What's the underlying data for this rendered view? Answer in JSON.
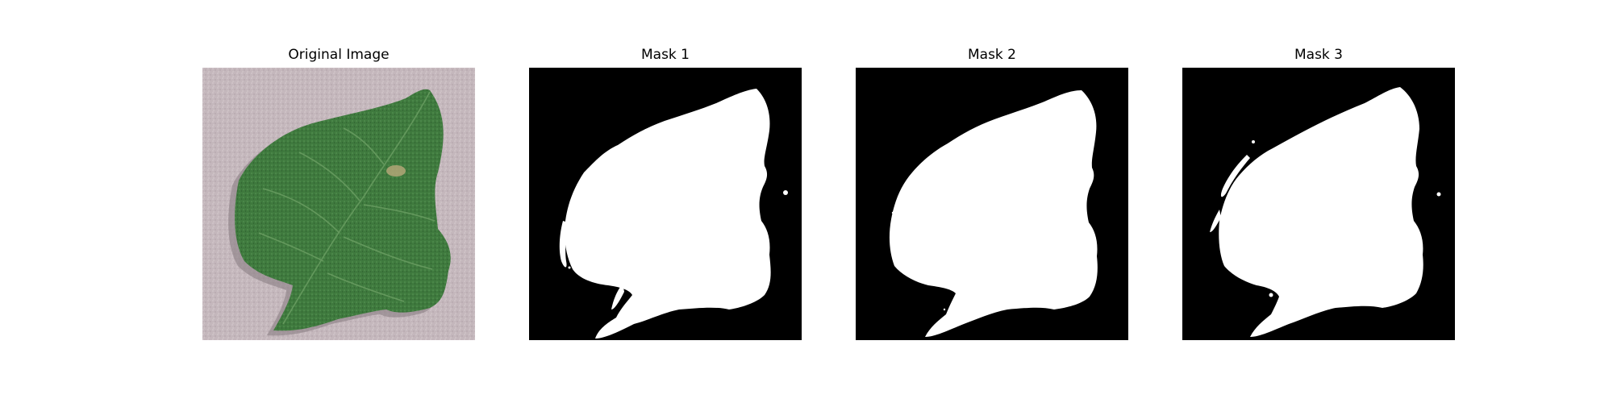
{
  "figure": {
    "panels": [
      {
        "title": "Original Image",
        "kind": "photo",
        "subject": "leaf"
      },
      {
        "title": "Mask 1",
        "kind": "mask",
        "variant": 1
      },
      {
        "title": "Mask 2",
        "kind": "mask",
        "variant": 2
      },
      {
        "title": "Mask 3",
        "kind": "mask",
        "variant": 3
      }
    ]
  },
  "colors": {
    "background": "#ffffff",
    "mask_background": "#000000",
    "mask_foreground": "#ffffff",
    "leaf": "#3f7a3e",
    "leaf_dark": "#2c5a2c",
    "paper": "#c4b7bc"
  }
}
